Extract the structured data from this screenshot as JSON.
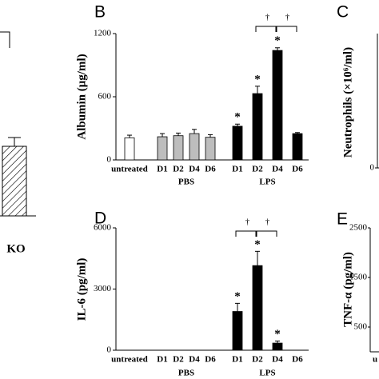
{
  "chart_data": [
    {
      "type": "bar",
      "panel_label": "B",
      "ylabel": "Albumin (μg/ml)",
      "ylim": [
        0,
        1200
      ],
      "yticks": [
        0,
        600,
        1200
      ],
      "groups": [
        {
          "name": null,
          "color": "#ffffff",
          "categories": [
            "untreated"
          ],
          "values": [
            210
          ],
          "errors": [
            25
          ],
          "stars": [
            null
          ]
        },
        {
          "name": "PBS",
          "color": "#bdbdbd",
          "categories": [
            "D1",
            "D2",
            "D4",
            "D6"
          ],
          "values": [
            220,
            230,
            250,
            215
          ],
          "errors": [
            30,
            25,
            40,
            25
          ],
          "stars": [
            null,
            null,
            null,
            null
          ]
        },
        {
          "name": "LPS",
          "color": "#000000",
          "categories": [
            "D1",
            "D2",
            "D4",
            "D6"
          ],
          "values": [
            320,
            630,
            1040,
            250
          ],
          "errors": [
            20,
            70,
            25,
            10
          ],
          "stars": [
            "*",
            "*",
            "*",
            null
          ],
          "brackets": [
            {
              "text": "†",
              "between": [
                "D2",
                "D4"
              ]
            },
            {
              "text": "†",
              "between": [
                "D4",
                "D6"
              ]
            }
          ]
        }
      ]
    },
    {
      "type": "bar",
      "panel_label": "D",
      "ylabel": "IL-6 (pg/ml)",
      "ylim": [
        0,
        6000
      ],
      "yticks": [
        0,
        3000,
        6000
      ],
      "groups": [
        {
          "name": null,
          "color": "#ffffff",
          "categories": [
            "untreated"
          ],
          "values": [
            0
          ],
          "errors": [
            0
          ],
          "stars": [
            null
          ]
        },
        {
          "name": "PBS",
          "color": "#bdbdbd",
          "categories": [
            "D1",
            "D2",
            "D4",
            "D6"
          ],
          "values": [
            0,
            0,
            0,
            0
          ],
          "errors": [
            0,
            0,
            0,
            0
          ],
          "stars": [
            null,
            null,
            null,
            null
          ]
        },
        {
          "name": "LPS",
          "color": "#000000",
          "categories": [
            "D1",
            "D2",
            "D4",
            "D6"
          ],
          "values": [
            1900,
            4150,
            350,
            0
          ],
          "errors": [
            400,
            700,
            100,
            0
          ],
          "stars": [
            "*",
            "*",
            "*",
            null
          ],
          "brackets": [
            {
              "text": "†",
              "between": [
                "D1",
                "D2"
              ]
            },
            {
              "text": "†",
              "between": [
                "D2",
                "D4"
              ]
            }
          ]
        }
      ]
    },
    {
      "type": "axis",
      "panel_label": "C",
      "ylabel": "Neutrophils (×10⁶/ml)",
      "yticks": [
        0
      ]
    },
    {
      "type": "axis",
      "panel_label": "E",
      "ylabel": "TNF-α (pg/ml)",
      "ylim": [
        0,
        2500
      ],
      "yticks": [
        500,
        1500,
        2500
      ],
      "categories": [
        "u"
      ]
    },
    {
      "type": "fragment",
      "categories": [
        "KO"
      ]
    }
  ]
}
